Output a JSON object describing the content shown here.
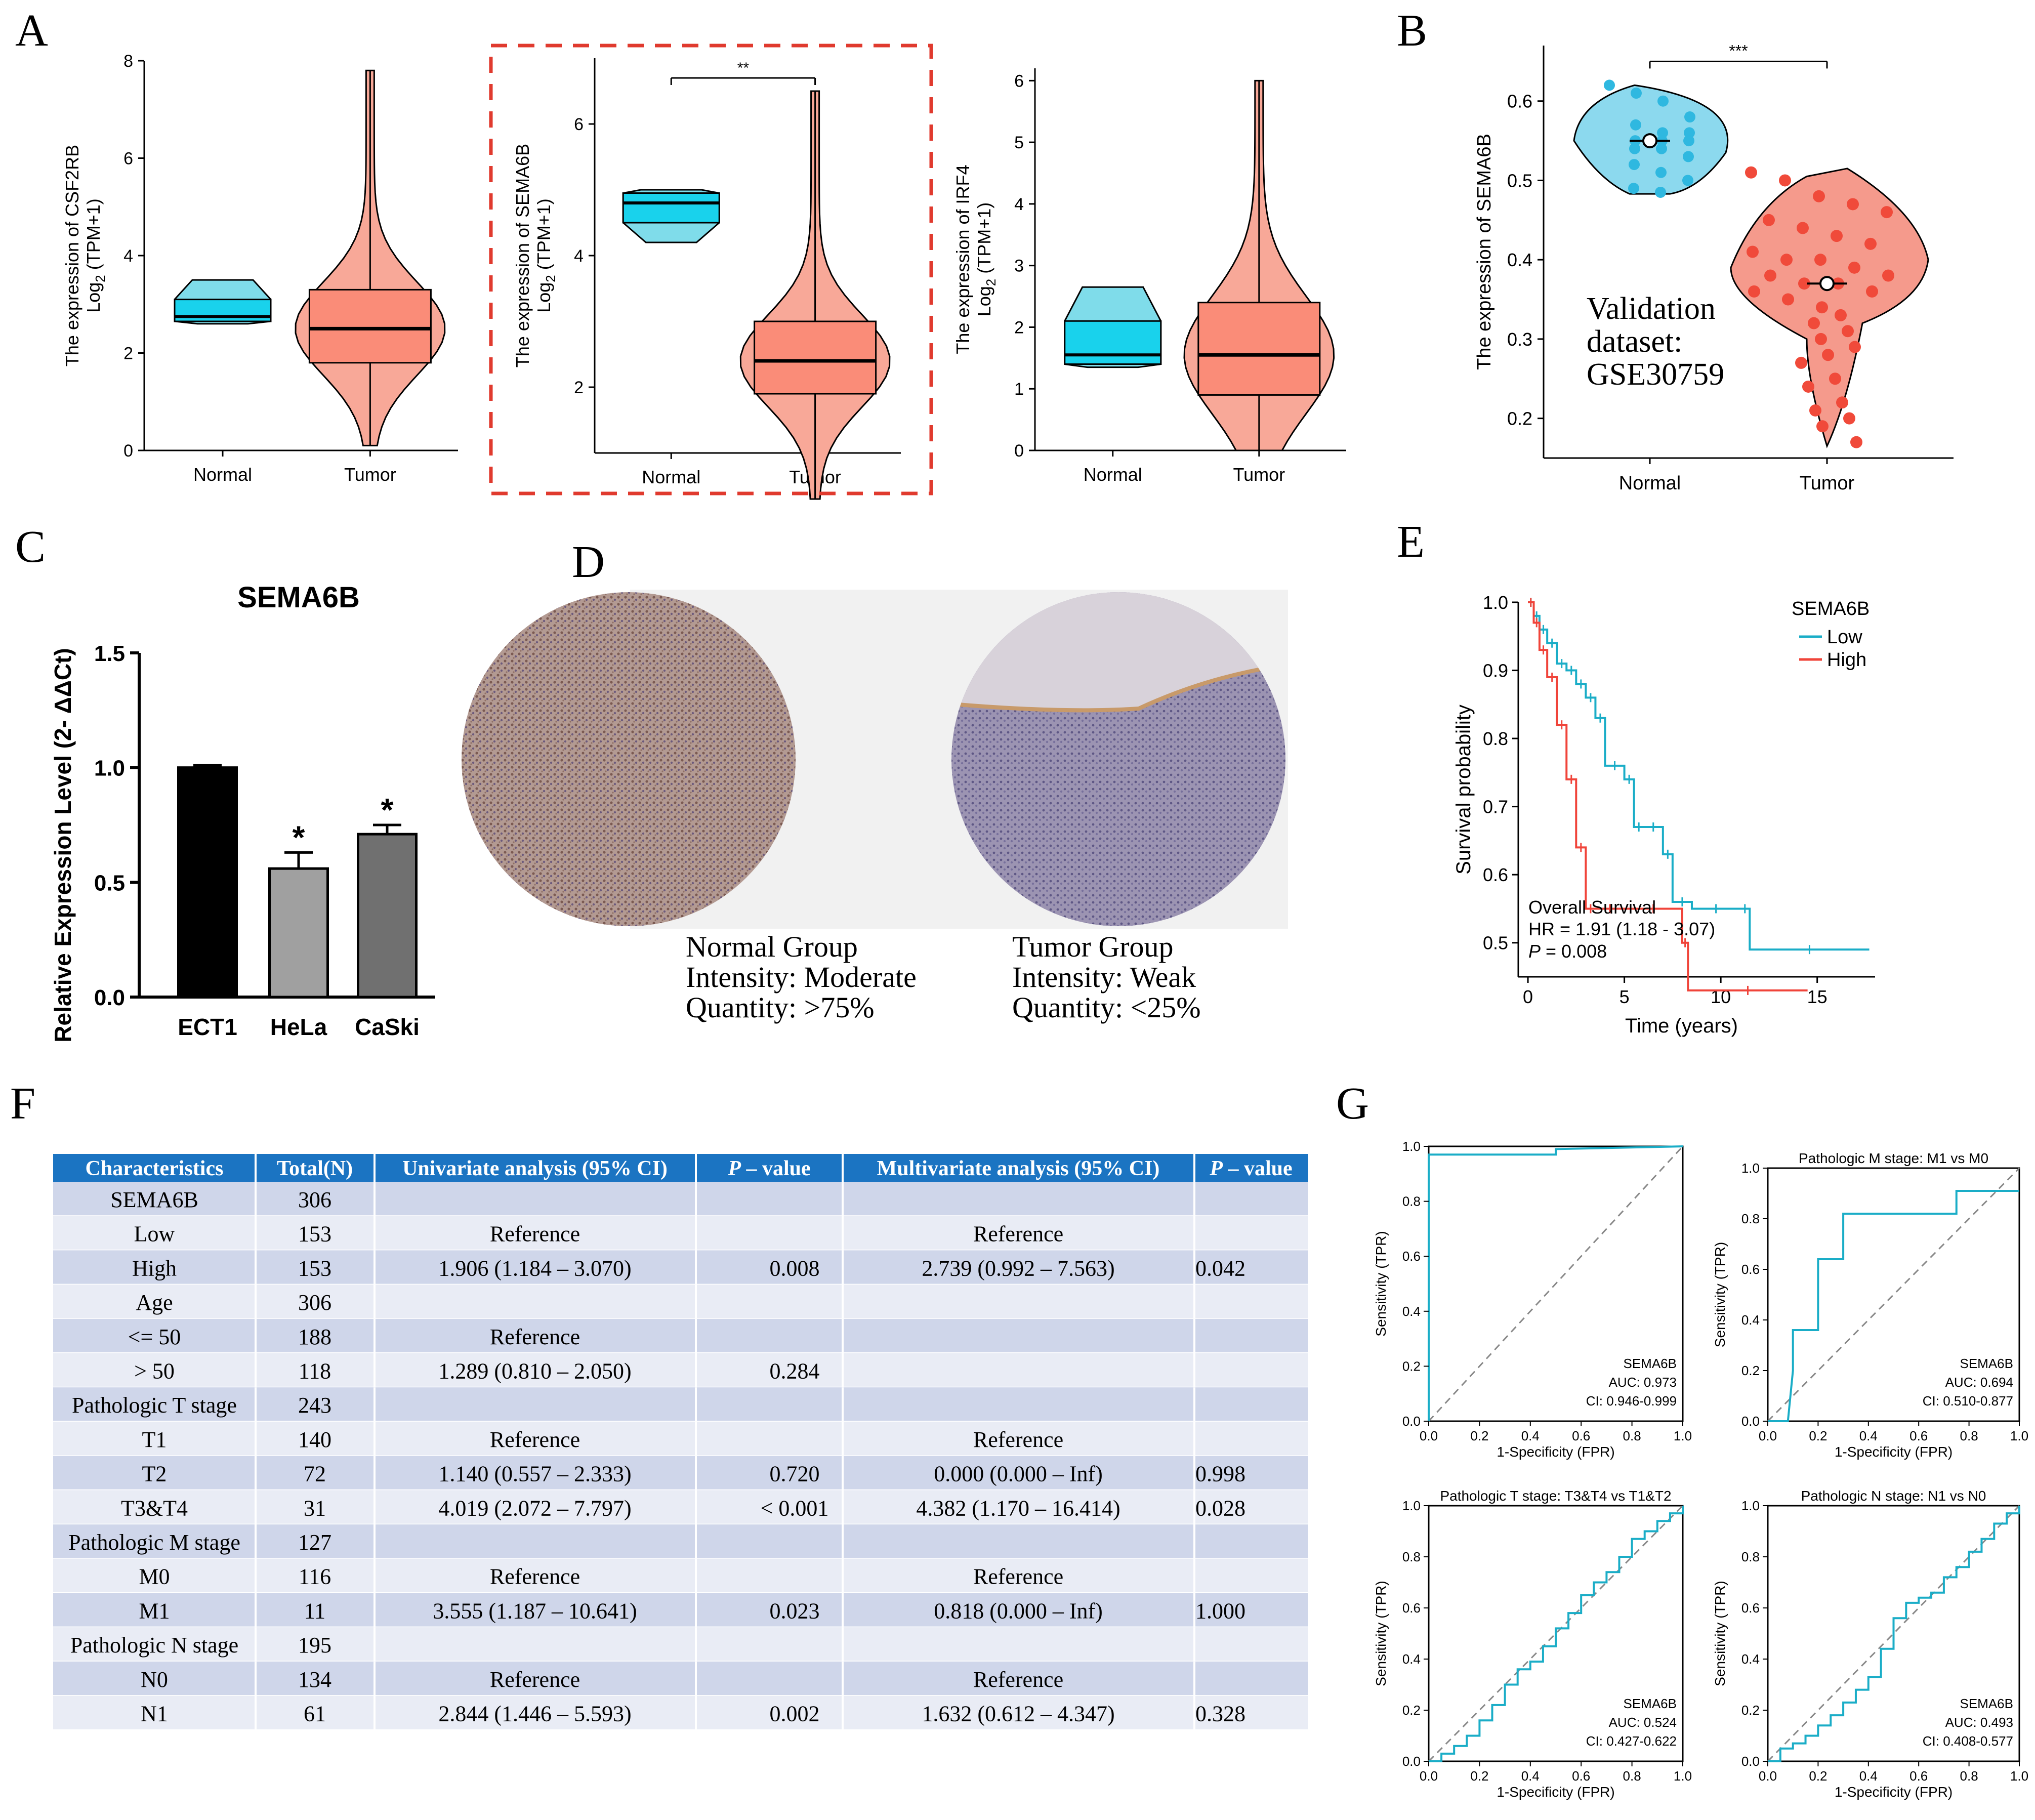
{
  "panel_letters": [
    "A",
    "B",
    "C",
    "D",
    "E",
    "F",
    "G"
  ],
  "panelA": {
    "x_categories": [
      "Normal",
      "Tumor"
    ],
    "plots": [
      {
        "ytitle1": "The expression of CSF2RB",
        "ytitle2": "Log",
        "ytitle2_sub": "2",
        "ytitle2_rest": " (TPM+1)",
        "yticks": [
          "0",
          "2",
          "4",
          "6",
          "8"
        ],
        "sig": "",
        "normal_box": {
          "min": 2.6,
          "q1": 2.65,
          "med": 2.75,
          "q3": 3.1,
          "max": 3.5
        },
        "tumor_box": {
          "min": 0.1,
          "q1": 1.8,
          "med": 2.5,
          "q3": 3.3,
          "max": 7.8
        }
      },
      {
        "ytitle1": "The expression of SEMA6B",
        "ytitle2": "Log",
        "ytitle2_sub": "2",
        "ytitle2_rest": " (TPM+1)",
        "yticks": [
          "2",
          "4",
          "6"
        ],
        "sig": "**",
        "normal_box": {
          "min": 4.2,
          "q1": 4.5,
          "med": 4.8,
          "q3": 4.95,
          "max": 5.0
        },
        "tumor_box": {
          "min": 0.3,
          "q1": 1.9,
          "med": 2.4,
          "q3": 3.0,
          "max": 6.5
        }
      },
      {
        "ytitle1": "The expression of IRF4",
        "ytitle2": "Log",
        "ytitle2_sub": "2",
        "ytitle2_rest": " (TPM+1)",
        "yticks": [
          "0",
          "1",
          "2",
          "3",
          "4",
          "5",
          "6"
        ],
        "sig": "",
        "normal_box": {
          "min": 1.35,
          "q1": 1.4,
          "med": 1.55,
          "q3": 2.1,
          "max": 2.65
        },
        "tumor_box": {
          "min": 0.0,
          "q1": 0.9,
          "med": 1.55,
          "q3": 2.4,
          "max": 6.0
        }
      }
    ]
  },
  "panelB": {
    "ytitle": "The expression of SEMA6B",
    "yticks": [
      "0.2",
      "0.3",
      "0.4",
      "0.5",
      "0.6"
    ],
    "x_categories": [
      "Normal",
      "Tumor"
    ],
    "sig": "***",
    "annotation": [
      "Validation",
      "dataset:",
      "GSE30759"
    ]
  },
  "panelC": {
    "chart_data": {
      "type": "bar",
      "title": "SEMA6B",
      "ylabel": "Relative Expression Level (2- ΔΔCt)",
      "categories": [
        "ECT1",
        "HeLa",
        "CaSki"
      ],
      "values": [
        1.0,
        0.56,
        0.71
      ],
      "errors": [
        0.01,
        0.07,
        0.04
      ],
      "sig": [
        "",
        "*",
        "*"
      ],
      "colors": [
        "#000000",
        "#a0a0a0",
        "#707070"
      ],
      "ylim": [
        0,
        1.5
      ],
      "yticks": [
        "0.0",
        "0.5",
        "1.0",
        "1.5"
      ]
    }
  },
  "panelD": {
    "normal": [
      "Normal Group",
      "Intensity: Moderate",
      "Quantity: >75%"
    ],
    "tumor": [
      "Tumor Group",
      "Intensity: Weak",
      "Quantity: <25%"
    ]
  },
  "panelE": {
    "chart_data": {
      "type": "line",
      "legend_title": "SEMA6B",
      "legend": [
        "Low",
        "High"
      ],
      "colors": [
        "#1aadc7",
        "#f0443a"
      ],
      "xlabel": "Time (years)",
      "ylabel": "Survival probability",
      "xticks": [
        "0",
        "5",
        "10",
        "15"
      ],
      "yticks": [
        "0.5",
        "0.6",
        "0.7",
        "0.8",
        "0.9",
        "1.0"
      ],
      "low_x": [
        0,
        0.3,
        0.6,
        1,
        1.5,
        2,
        2.5,
        3,
        3.5,
        4,
        5,
        5.5,
        6,
        7,
        7.5,
        8.5,
        11,
        11.5,
        17.7
      ],
      "low_y": [
        1.0,
        0.98,
        0.96,
        0.94,
        0.91,
        0.9,
        0.88,
        0.86,
        0.83,
        0.76,
        0.74,
        0.67,
        0.67,
        0.63,
        0.56,
        0.55,
        0.55,
        0.49,
        0.49
      ],
      "high_x": [
        0,
        0.3,
        0.6,
        1,
        1.5,
        2,
        2.5,
        3,
        3.5,
        5,
        8,
        8.3,
        14.5
      ],
      "high_y": [
        1.0,
        0.97,
        0.93,
        0.89,
        0.82,
        0.74,
        0.64,
        0.55,
        0.55,
        0.55,
        0.5,
        0.43,
        0.43
      ],
      "overall": "Overall Survival",
      "hr": "HR = 1.91 (1.18 - 3.07)",
      "p_label": "P",
      "p_value": " = 0.008"
    }
  },
  "panelF": {
    "headers": [
      "Characteristics",
      "Total(N)",
      "Univariate analysis (95% CI)",
      "P – value",
      "Multivariate analysis (95% CI)",
      "P – value"
    ],
    "rows": [
      [
        "SEMA6B",
        "306",
        "",
        "",
        "",
        ""
      ],
      [
        "Low",
        "153",
        "Reference",
        "",
        "Reference",
        ""
      ],
      [
        "High",
        "153",
        "1.906 (1.184 – 3.070)",
        "0.008",
        "2.739 (0.992 – 7.563)",
        "0.042"
      ],
      [
        "Age",
        "306",
        "",
        "",
        "",
        ""
      ],
      [
        "<= 50",
        "188",
        "Reference",
        "",
        "",
        ""
      ],
      [
        "> 50",
        "118",
        "1.289 (0.810 – 2.050)",
        "0.284",
        "",
        ""
      ],
      [
        "Pathologic T stage",
        "243",
        "",
        "",
        "",
        ""
      ],
      [
        "T1",
        "140",
        "Reference",
        "",
        "Reference",
        ""
      ],
      [
        "T2",
        "72",
        "1.140 (0.557 – 2.333)",
        "0.720",
        "0.000 (0.000 – Inf)",
        "0.998"
      ],
      [
        "T3&T4",
        "31",
        "4.019 (2.072 – 7.797)",
        "< 0.001",
        "4.382 (1.170 – 16.414)",
        "0.028"
      ],
      [
        "Pathologic M stage",
        "127",
        "",
        "",
        "",
        ""
      ],
      [
        "M0",
        "116",
        "Reference",
        "",
        "Reference",
        ""
      ],
      [
        "M1",
        "11",
        "3.555 (1.187 – 10.641)",
        "0.023",
        "0.818 (0.000 – Inf)",
        "1.000"
      ],
      [
        "Pathologic N stage",
        "195",
        "",
        "",
        "",
        ""
      ],
      [
        "N0",
        "134",
        "Reference",
        "",
        "Reference",
        ""
      ],
      [
        "N1",
        "61",
        "2.844 (1.446 – 5.593)",
        "0.002",
        "1.632 (0.612 – 4.347)",
        "0.328"
      ]
    ]
  },
  "panelG": {
    "xlabel": "1-Specificity (FPR)",
    "ylabel": "Sensitivity (TPR)",
    "ticks": [
      "0.0",
      "0.2",
      "0.4",
      "0.6",
      "0.8",
      "1.0"
    ],
    "line_color": "#1aadc7",
    "plots": [
      {
        "title": "",
        "name": "SEMA6B",
        "auc": "AUC: 0.973",
        "ci": "CI: 0.946-0.999",
        "fpr": [
          0,
          0,
          0.02,
          0.5,
          0.5,
          1.0
        ],
        "tpr": [
          0,
          0.97,
          0.97,
          0.97,
          0.99,
          1.0
        ]
      },
      {
        "title": "Pathologic M stage: M1 vs M0",
        "name": "SEMA6B",
        "auc": "AUC: 0.694",
        "ci": "CI: 0.510-0.877",
        "fpr": [
          0,
          0.08,
          0.1,
          0.1,
          0.2,
          0.2,
          0.3,
          0.3,
          0.75,
          0.75,
          1.0
        ],
        "tpr": [
          0,
          0,
          0.2,
          0.36,
          0.36,
          0.64,
          0.64,
          0.82,
          0.82,
          0.91,
          0.91
        ]
      },
      {
        "title": "Pathologic T stage: T3&T4 vs T1&T2",
        "name": "SEMA6B",
        "auc": "AUC: 0.524",
        "ci": "CI: 0.427-0.622",
        "fpr": [
          0,
          0.05,
          0.1,
          0.15,
          0.2,
          0.25,
          0.3,
          0.35,
          0.4,
          0.45,
          0.5,
          0.55,
          0.6,
          0.65,
          0.7,
          0.75,
          0.8,
          0.85,
          0.9,
          0.95,
          1.0
        ],
        "tpr": [
          0,
          0.03,
          0.06,
          0.1,
          0.16,
          0.22,
          0.3,
          0.36,
          0.39,
          0.45,
          0.52,
          0.58,
          0.65,
          0.7,
          0.74,
          0.8,
          0.87,
          0.9,
          0.94,
          0.97,
          1.0
        ]
      },
      {
        "title": "Pathologic N stage: N1 vs N0",
        "name": "SEMA6B",
        "auc": "AUC: 0.493",
        "ci": "CI: 0.408-0.577",
        "fpr": [
          0,
          0.05,
          0.1,
          0.15,
          0.2,
          0.25,
          0.3,
          0.35,
          0.4,
          0.45,
          0.5,
          0.55,
          0.6,
          0.65,
          0.7,
          0.75,
          0.8,
          0.85,
          0.9,
          0.95,
          1.0
        ],
        "tpr": [
          0,
          0.05,
          0.07,
          0.1,
          0.14,
          0.18,
          0.23,
          0.28,
          0.33,
          0.44,
          0.56,
          0.62,
          0.64,
          0.66,
          0.72,
          0.76,
          0.82,
          0.87,
          0.93,
          0.97,
          1.0
        ]
      }
    ]
  }
}
